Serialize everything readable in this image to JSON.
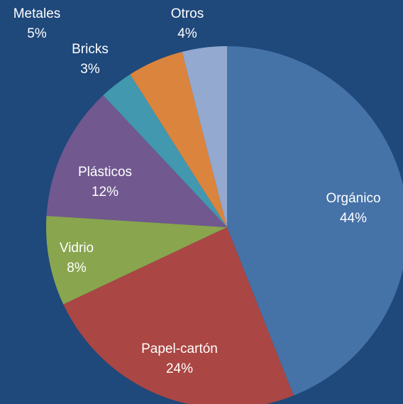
{
  "chart_data": {
    "type": "pie",
    "categories": [
      "Orgánico",
      "Papel-cartón",
      "Vidrio",
      "Plásticos",
      "Bricks",
      "Metales",
      "Otros"
    ],
    "values": [
      44,
      24,
      8,
      12,
      3,
      5,
      4
    ],
    "value_labels": [
      "44%",
      "24%",
      "8%",
      "12%",
      "3%",
      "5%",
      "4%"
    ],
    "colors": [
      "#4572a7",
      "#aa4643",
      "#89a54e",
      "#71588f",
      "#4198af",
      "#db843d",
      "#93a9cf"
    ]
  }
}
